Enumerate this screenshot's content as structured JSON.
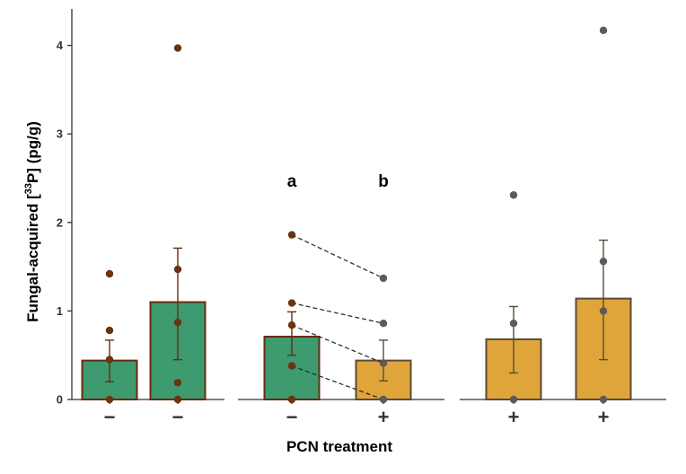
{
  "chart_data": {
    "type": "bar",
    "title": "",
    "xlabel": "PCN treatment",
    "ylabel_main": "Fungal-acquired [",
    "ylabel_sup": "33",
    "ylabel_rest": "P] (pg/g)",
    "ylim": [
      0,
      4.4
    ],
    "yticks": [
      0,
      1,
      2,
      3,
      4
    ],
    "ytick_labels": [
      "0",
      "1",
      "2",
      "3",
      "4"
    ],
    "colors": {
      "minus_fill": "#3e9a6f",
      "minus_edge": "#6b2a10",
      "minus_point": "#6b3311",
      "plus_fill": "#e0a53a",
      "plus_edge": "#5a4a3a",
      "plus_point": "#5f5a55",
      "axis": "#333333"
    },
    "panels": [
      {
        "bars": [
          {
            "treatment": "−",
            "pcn": "minus",
            "mean": 0.44,
            "error": [
              0.2,
              0.67
            ],
            "points": [
              1.42,
              0.78,
              0.45,
              0.0
            ]
          },
          {
            "treatment": "−",
            "pcn": "minus",
            "mean": 1.1,
            "error": [
              0.45,
              1.71
            ],
            "points": [
              3.97,
              1.47,
              0.87,
              0.19,
              0.0
            ]
          }
        ]
      },
      {
        "bars": [
          {
            "treatment": "−",
            "pcn": "minus",
            "mean": 0.71,
            "error": [
              0.5,
              0.99
            ],
            "points": [
              1.86,
              1.09,
              0.84,
              0.38,
              0.0
            ],
            "sig": "a"
          },
          {
            "treatment": "+",
            "pcn": "plus",
            "mean": 0.44,
            "error": [
              0.21,
              0.67
            ],
            "points": [
              1.37,
              0.86,
              0.41,
              0.0
            ],
            "sig": "b"
          }
        ],
        "pairs": [
          [
            1.86,
            1.37
          ],
          [
            1.09,
            0.86
          ],
          [
            0.84,
            0.41
          ],
          [
            0.38,
            0.0
          ]
        ]
      },
      {
        "bars": [
          {
            "treatment": "+",
            "pcn": "plus",
            "mean": 0.68,
            "error": [
              0.3,
              1.05
            ],
            "points": [
              2.31,
              0.86,
              0.0
            ]
          },
          {
            "treatment": "+",
            "pcn": "plus",
            "mean": 1.14,
            "error": [
              0.45,
              1.8
            ],
            "points": [
              4.17,
              1.56,
              1.0,
              0.0
            ]
          }
        ]
      }
    ]
  }
}
